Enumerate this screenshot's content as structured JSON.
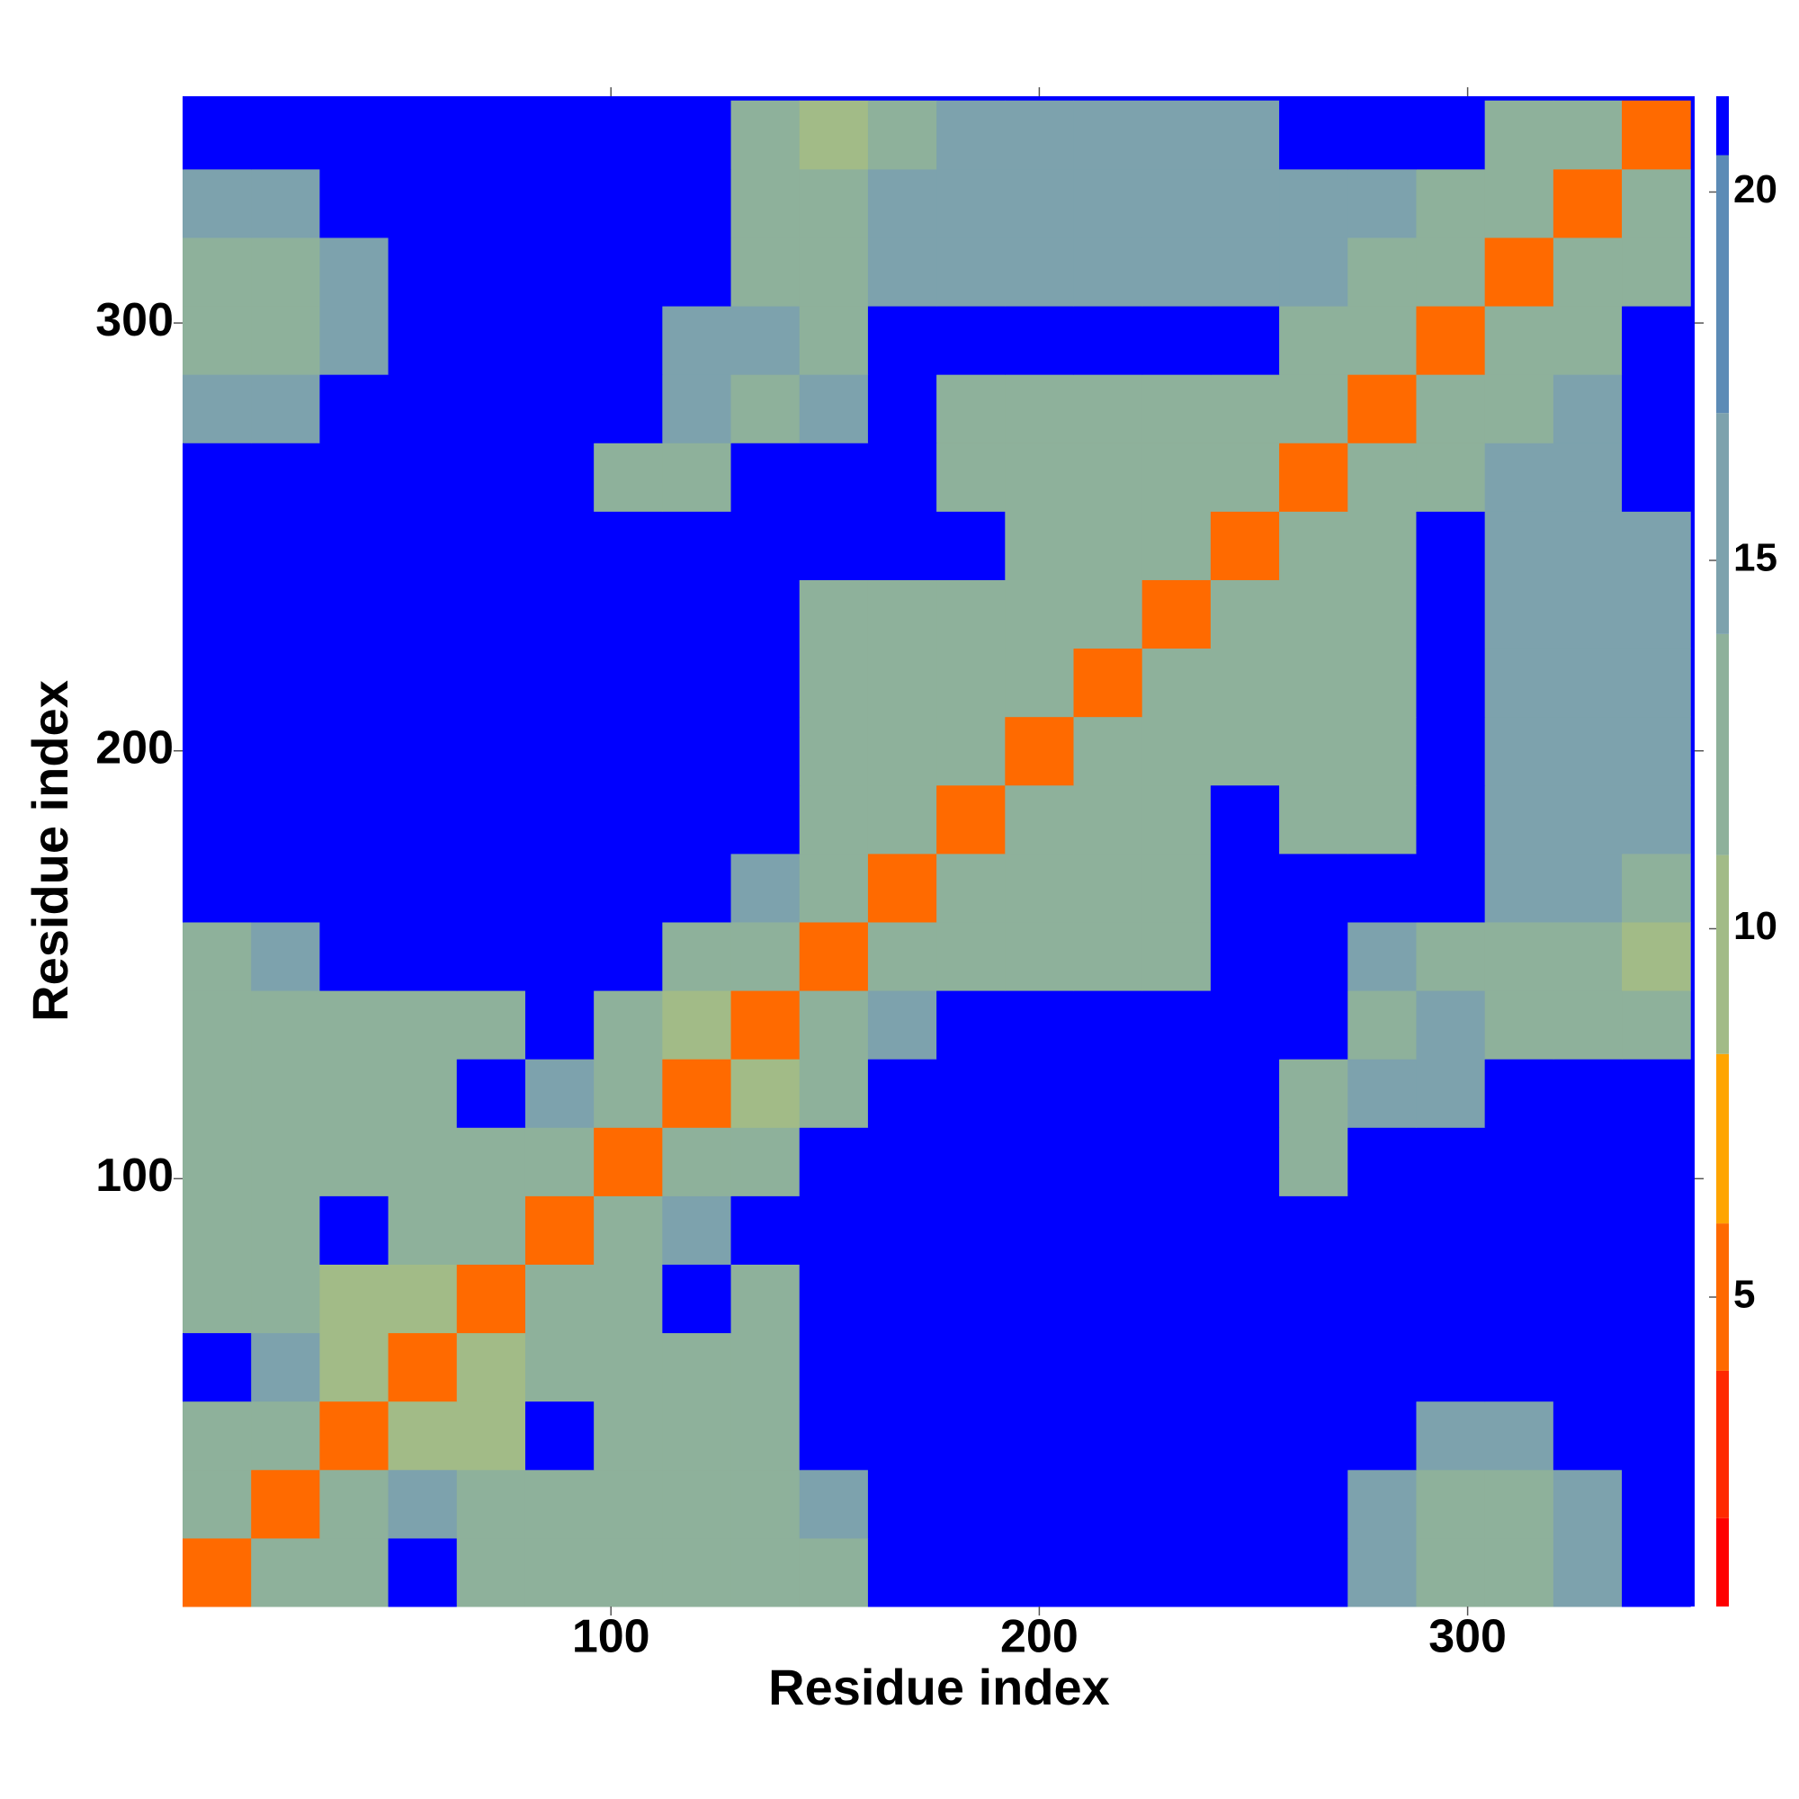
{
  "chart_data": {
    "type": "heatmap",
    "xlabel": "Residue index",
    "ylabel": "Residue index",
    "xlim": [
      0,
      353
    ],
    "ylim": [
      0,
      353
    ],
    "xticks": [
      100,
      200,
      300
    ],
    "yticks": [
      100,
      200,
      300
    ],
    "xbins": [
      0,
      16,
      32,
      48,
      64,
      80,
      96,
      112,
      128,
      144,
      160,
      176,
      192,
      208,
      224,
      240,
      256,
      272,
      288,
      304,
      320,
      336,
      352
    ],
    "ybins": [
      0,
      16,
      32,
      48,
      64,
      80,
      96,
      112,
      128,
      144,
      160,
      176,
      192,
      208,
      224,
      240,
      256,
      272,
      288,
      304,
      320,
      336,
      352
    ],
    "values": [
      [
        5,
        12,
        14,
        21,
        14,
        13,
        13,
        14,
        14,
        14,
        21,
        21,
        21,
        21,
        21,
        21,
        21,
        15,
        14,
        14,
        16,
        21
      ],
      [
        12,
        5,
        12,
        15,
        14,
        14,
        14,
        14,
        14,
        15,
        21,
        21,
        21,
        21,
        21,
        21,
        21,
        15,
        12,
        13,
        15,
        21
      ],
      [
        14,
        12,
        5,
        10,
        11,
        21,
        14,
        12,
        14,
        21,
        21,
        21,
        21,
        21,
        21,
        21,
        21,
        21,
        15,
        15,
        21,
        21
      ],
      [
        21,
        15,
        10,
        5,
        10,
        13,
        14,
        14,
        14,
        21,
        21,
        21,
        21,
        21,
        21,
        21,
        21,
        21,
        21,
        21,
        21,
        21
      ],
      [
        14,
        14,
        11,
        10,
        5,
        12,
        13,
        21,
        14,
        21,
        21,
        21,
        21,
        21,
        21,
        21,
        21,
        21,
        21,
        21,
        21,
        21
      ],
      [
        13,
        14,
        21,
        13,
        12,
        5,
        12,
        15,
        21,
        21,
        21,
        21,
        21,
        21,
        21,
        21,
        21,
        21,
        21,
        21,
        21,
        21
      ],
      [
        13,
        14,
        14,
        14,
        13,
        12,
        5,
        12,
        14,
        21,
        21,
        21,
        21,
        21,
        21,
        21,
        14,
        21,
        21,
        21,
        21,
        21
      ],
      [
        14,
        14,
        12,
        14,
        21,
        15,
        12,
        5,
        9,
        13,
        21,
        21,
        21,
        21,
        21,
        21,
        14,
        15,
        15,
        21,
        21,
        21
      ],
      [
        14,
        14,
        14,
        14,
        14,
        21,
        14,
        9,
        5,
        12,
        15,
        21,
        21,
        21,
        21,
        21,
        21,
        14,
        15,
        12,
        14,
        14
      ],
      [
        14,
        15,
        21,
        21,
        21,
        21,
        21,
        13,
        12,
        5,
        12,
        14,
        14,
        14,
        14,
        21,
        21,
        15,
        14,
        14,
        14,
        11
      ],
      [
        21,
        21,
        21,
        21,
        21,
        21,
        21,
        21,
        15,
        12,
        5,
        12,
        13,
        12,
        14,
        21,
        21,
        21,
        21,
        15,
        16,
        14
      ],
      [
        21,
        21,
        21,
        21,
        21,
        21,
        21,
        21,
        21,
        14,
        12,
        5,
        12,
        13,
        13,
        21,
        14,
        14,
        21,
        15,
        16,
        16
      ],
      [
        21,
        21,
        21,
        21,
        21,
        21,
        21,
        21,
        21,
        14,
        13,
        12,
        5,
        12,
        13,
        14,
        14,
        14,
        21,
        15,
        16,
        16
      ],
      [
        21,
        21,
        21,
        21,
        21,
        21,
        21,
        21,
        21,
        14,
        12,
        13,
        12,
        5,
        12,
        13,
        13,
        14,
        21,
        15,
        16,
        16
      ],
      [
        21,
        21,
        21,
        21,
        21,
        21,
        21,
        21,
        21,
        14,
        14,
        13,
        13,
        12,
        5,
        12,
        13,
        14,
        21,
        15,
        15,
        16
      ],
      [
        21,
        21,
        21,
        21,
        21,
        21,
        21,
        21,
        21,
        21,
        21,
        21,
        14,
        13,
        12,
        5,
        12,
        13,
        21,
        15,
        15,
        15
      ],
      [
        21,
        21,
        21,
        21,
        21,
        21,
        14,
        14,
        21,
        21,
        21,
        14,
        14,
        13,
        13,
        12,
        5,
        12,
        13,
        15,
        15,
        21
      ],
      [
        15,
        15,
        21,
        21,
        21,
        21,
        21,
        15,
        14,
        15,
        21,
        14,
        14,
        14,
        14,
        13,
        12,
        5,
        12,
        13,
        15,
        21
      ],
      [
        14,
        12,
        15,
        21,
        21,
        21,
        21,
        15,
        15,
        14,
        21,
        21,
        21,
        21,
        21,
        21,
        13,
        12,
        5,
        12,
        13,
        21
      ],
      [
        14,
        13,
        15,
        21,
        21,
        21,
        21,
        21,
        12,
        14,
        15,
        15,
        15,
        15,
        15,
        15,
        15,
        13,
        12,
        5,
        12,
        13
      ],
      [
        16,
        15,
        21,
        21,
        21,
        21,
        21,
        21,
        14,
        14,
        16,
        16,
        16,
        16,
        15,
        15,
        15,
        15,
        13,
        12,
        5,
        12
      ],
      [
        21,
        21,
        21,
        21,
        21,
        21,
        21,
        21,
        14,
        11,
        14,
        16,
        16,
        16,
        16,
        15,
        21,
        21,
        21,
        13,
        12,
        5
      ]
    ],
    "clim": [
      0.8,
      21.3
    ],
    "colorscale": [
      {
        "value": 2,
        "color": "#ff0000"
      },
      {
        "value": 4,
        "color": "#ff2a00"
      },
      {
        "value": 6,
        "color": "#ff6a00"
      },
      {
        "value": 8.3,
        "color": "#ffa500"
      },
      {
        "value": 11,
        "color": "#a2bb87"
      },
      {
        "value": 14,
        "color": "#8eb19b"
      },
      {
        "value": 17,
        "color": "#7da2ad"
      },
      {
        "value": 20.5,
        "color": "#5c8bb6"
      },
      {
        "value": 21.3,
        "color": "#0000ff"
      }
    ],
    "colorbar_ticks": [
      5,
      10,
      15,
      20
    ]
  }
}
